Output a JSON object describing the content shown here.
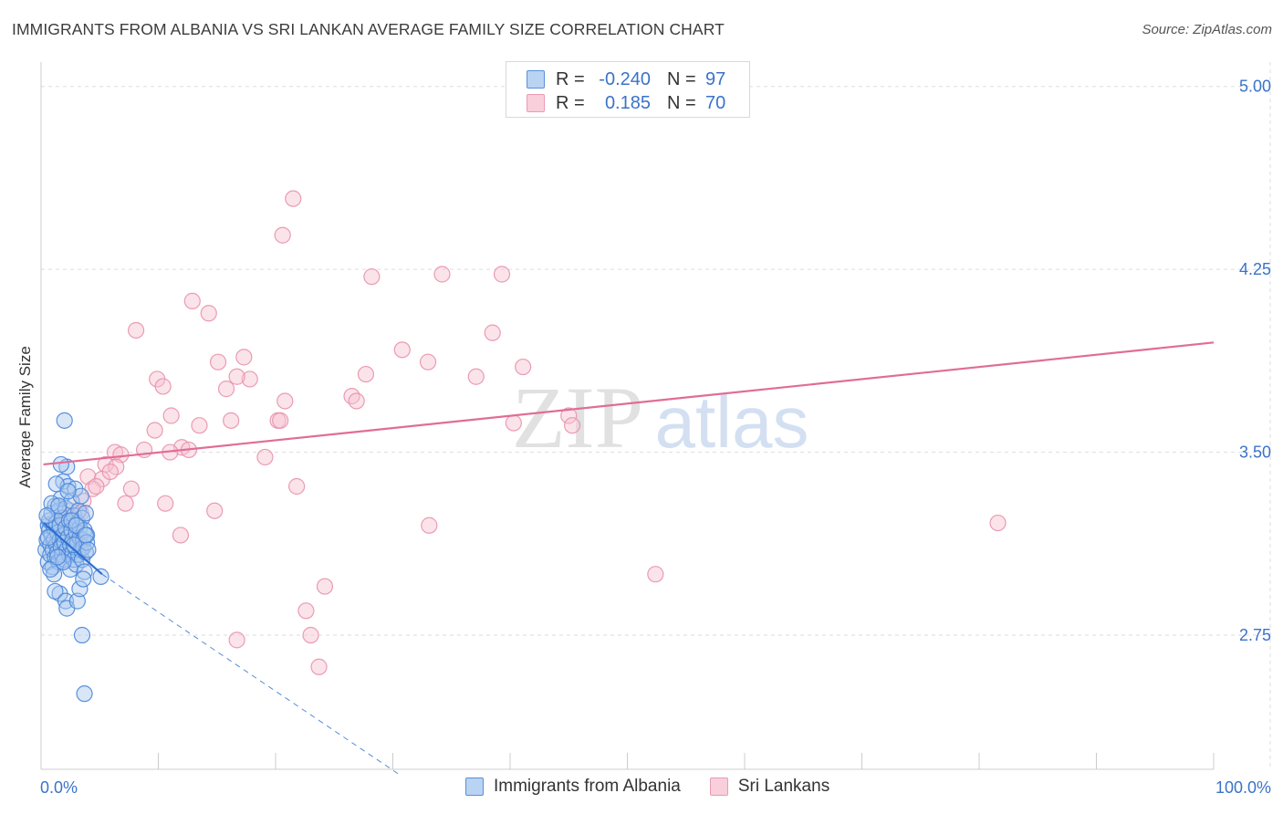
{
  "title": "IMMIGRANTS FROM ALBANIA VS SRI LANKAN AVERAGE FAMILY SIZE CORRELATION CHART",
  "source": "Source: ZipAtlas.com",
  "watermark": {
    "zip": "ZIP",
    "atlas": "atlas"
  },
  "legend": {
    "series": [
      {
        "r_label": "R =",
        "r_value": "-0.240",
        "n_label": "N =",
        "n_value": "97"
      },
      {
        "r_label": "R =",
        "r_value": "0.185",
        "n_label": "N =",
        "n_value": "70"
      }
    ]
  },
  "bottom_legend": {
    "albania": "Immigrants from Albania",
    "srilanka": "Sri Lankans"
  },
  "colors": {
    "albania_fill": "#a8c8f0",
    "albania_stroke": "#4a86d8",
    "albania_line": "#2b6fd1",
    "srilanka_fill": "#f7c1d1",
    "srilanka_stroke": "#e891ad",
    "srilanka_line": "#e06d96",
    "axis_label": "#3a73c9",
    "grid": "#dddddd"
  },
  "chart_data": {
    "type": "scatter",
    "title": "IMMIGRANTS FROM ALBANIA VS SRI LANKAN AVERAGE FAMILY SIZE CORRELATION CHART",
    "xlabel": "",
    "ylabel": "Average Family Size",
    "xlim": [
      0,
      100
    ],
    "ylim": [
      2.2,
      5.1
    ],
    "y_ticks": [
      2.75,
      3.5,
      4.25,
      5.0
    ],
    "y_tick_labels": [
      "2.75",
      "3.50",
      "4.25",
      "5.00"
    ],
    "x_tick_labels": [
      "0.0%",
      "100.0%"
    ],
    "series": [
      {
        "name": "Immigrants from Albania",
        "key": "albania",
        "trend": {
          "x": [
            0.2,
            5.2
          ],
          "y": [
            3.21,
            3.0
          ]
        },
        "trend_ext": {
          "x": [
            5.2,
            30.5
          ],
          "y": [
            3.0,
            2.18
          ]
        },
        "points": [
          [
            0.4,
            3.1
          ],
          [
            0.5,
            3.14
          ],
          [
            0.6,
            3.2
          ],
          [
            0.6,
            3.05
          ],
          [
            0.7,
            3.18
          ],
          [
            0.7,
            3.22
          ],
          [
            0.8,
            3.12
          ],
          [
            0.8,
            3.08
          ],
          [
            0.9,
            3.16
          ],
          [
            0.9,
            3.25
          ],
          [
            1.0,
            3.1
          ],
          [
            1.0,
            3.03
          ],
          [
            1.1,
            3.19
          ],
          [
            1.1,
            3.14
          ],
          [
            1.2,
            3.07
          ],
          [
            1.2,
            3.28
          ],
          [
            1.3,
            3.12
          ],
          [
            1.3,
            3.21
          ],
          [
            1.4,
            3.17
          ],
          [
            1.4,
            3.09
          ],
          [
            1.5,
            3.26
          ],
          [
            1.5,
            3.05
          ],
          [
            1.6,
            3.14
          ],
          [
            1.6,
            3.2
          ],
          [
            1.7,
            3.11
          ],
          [
            1.7,
            3.31
          ],
          [
            1.8,
            3.08
          ],
          [
            1.8,
            3.23
          ],
          [
            1.9,
            3.16
          ],
          [
            1.9,
            3.38
          ],
          [
            2.0,
            3.13
          ],
          [
            2.0,
            3.06
          ],
          [
            2.1,
            3.19
          ],
          [
            2.1,
            3.27
          ],
          [
            2.2,
            3.1
          ],
          [
            2.2,
            3.44
          ],
          [
            2.3,
            3.15
          ],
          [
            2.3,
            3.36
          ],
          [
            2.4,
            3.08
          ],
          [
            2.4,
            3.22
          ],
          [
            2.5,
            3.12
          ],
          [
            2.5,
            3.02
          ],
          [
            2.6,
            3.18
          ],
          [
            2.6,
            3.3
          ],
          [
            2.7,
            3.09
          ],
          [
            2.7,
            3.14
          ],
          [
            2.8,
            3.24
          ],
          [
            2.8,
            3.06
          ],
          [
            2.9,
            3.11
          ],
          [
            2.9,
            3.35
          ],
          [
            3.0,
            3.17
          ],
          [
            3.0,
            3.04
          ],
          [
            3.1,
            3.21
          ],
          [
            3.1,
            3.13
          ],
          [
            3.2,
            3.08
          ],
          [
            3.2,
            3.26
          ],
          [
            3.3,
            3.15
          ],
          [
            3.3,
            3.19
          ],
          [
            3.4,
            3.1
          ],
          [
            3.4,
            3.32
          ],
          [
            3.5,
            3.06
          ],
          [
            3.5,
            3.23
          ],
          [
            3.6,
            3.14
          ],
          [
            3.6,
            3.11
          ],
          [
            3.7,
            3.18
          ],
          [
            3.7,
            3.01
          ],
          [
            3.8,
            3.09
          ],
          [
            3.8,
            3.25
          ],
          [
            3.9,
            3.16
          ],
          [
            3.9,
            3.13
          ],
          [
            2.0,
            3.63
          ],
          [
            1.7,
            3.45
          ],
          [
            1.3,
            3.37
          ],
          [
            2.3,
            3.34
          ],
          [
            0.9,
            3.29
          ],
          [
            1.6,
            2.92
          ],
          [
            1.2,
            2.93
          ],
          [
            2.1,
            2.89
          ],
          [
            2.2,
            2.86
          ],
          [
            3.1,
            2.89
          ],
          [
            3.3,
            2.94
          ],
          [
            3.6,
            2.98
          ],
          [
            5.1,
            2.99
          ],
          [
            3.5,
            2.75
          ],
          [
            3.7,
            2.51
          ],
          [
            1.1,
            3.0
          ],
          [
            0.8,
            3.02
          ],
          [
            1.9,
            3.05
          ],
          [
            2.6,
            3.22
          ],
          [
            1.5,
            3.28
          ],
          [
            0.6,
            3.15
          ],
          [
            2.8,
            3.12
          ],
          [
            3.0,
            3.2
          ],
          [
            1.4,
            3.07
          ],
          [
            4.0,
            3.1
          ],
          [
            3.8,
            3.16
          ],
          [
            0.5,
            3.24
          ]
        ]
      },
      {
        "name": "Sri Lankans",
        "key": "srilanka",
        "trend": {
          "x": [
            0.2,
            100.0
          ],
          "y": [
            3.45,
            3.95
          ]
        },
        "points": [
          [
            21.5,
            4.54
          ],
          [
            20.6,
            4.39
          ],
          [
            28.2,
            4.22
          ],
          [
            34.2,
            4.23
          ],
          [
            39.3,
            4.23
          ],
          [
            12.9,
            4.12
          ],
          [
            14.3,
            4.07
          ],
          [
            8.1,
            4.0
          ],
          [
            38.5,
            3.99
          ],
          [
            30.8,
            3.92
          ],
          [
            17.3,
            3.89
          ],
          [
            33.0,
            3.87
          ],
          [
            15.1,
            3.87
          ],
          [
            41.1,
            3.85
          ],
          [
            27.7,
            3.82
          ],
          [
            37.1,
            3.81
          ],
          [
            9.9,
            3.8
          ],
          [
            17.8,
            3.8
          ],
          [
            16.7,
            3.81
          ],
          [
            10.4,
            3.77
          ],
          [
            15.8,
            3.76
          ],
          [
            26.5,
            3.73
          ],
          [
            26.9,
            3.71
          ],
          [
            20.8,
            3.71
          ],
          [
            11.1,
            3.65
          ],
          [
            45.0,
            3.65
          ],
          [
            20.2,
            3.63
          ],
          [
            20.4,
            3.63
          ],
          [
            16.2,
            3.63
          ],
          [
            45.3,
            3.61
          ],
          [
            40.3,
            3.62
          ],
          [
            9.7,
            3.59
          ],
          [
            13.5,
            3.61
          ],
          [
            12.0,
            3.52
          ],
          [
            12.6,
            3.51
          ],
          [
            8.8,
            3.51
          ],
          [
            6.3,
            3.5
          ],
          [
            11.0,
            3.5
          ],
          [
            6.8,
            3.49
          ],
          [
            19.1,
            3.48
          ],
          [
            5.5,
            3.45
          ],
          [
            6.4,
            3.44
          ],
          [
            4.0,
            3.4
          ],
          [
            5.2,
            3.39
          ],
          [
            7.7,
            3.35
          ],
          [
            21.8,
            3.36
          ],
          [
            4.4,
            3.35
          ],
          [
            3.6,
            3.3
          ],
          [
            2.5,
            3.26
          ],
          [
            3.4,
            3.25
          ],
          [
            7.2,
            3.29
          ],
          [
            10.6,
            3.29
          ],
          [
            14.8,
            3.26
          ],
          [
            2.9,
            3.22
          ],
          [
            1.5,
            3.19
          ],
          [
            33.1,
            3.2
          ],
          [
            81.6,
            3.21
          ],
          [
            11.9,
            3.16
          ],
          [
            52.4,
            3.0
          ],
          [
            24.2,
            2.95
          ],
          [
            22.6,
            2.85
          ],
          [
            23.0,
            2.75
          ],
          [
            16.7,
            2.73
          ],
          [
            23.7,
            2.62
          ],
          [
            1.0,
            3.21
          ],
          [
            2.0,
            3.18
          ],
          [
            2.4,
            3.24
          ],
          [
            1.8,
            3.14
          ],
          [
            4.7,
            3.36
          ],
          [
            5.9,
            3.42
          ]
        ]
      }
    ]
  }
}
